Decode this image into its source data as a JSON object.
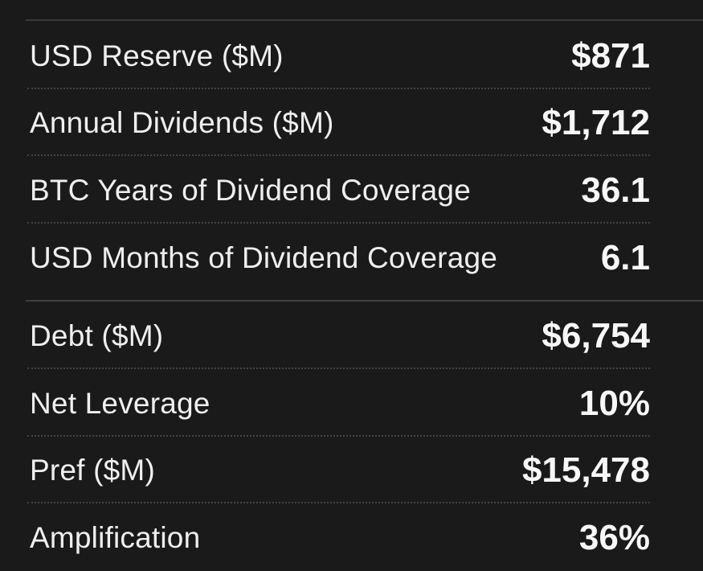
{
  "metrics": {
    "coverage": [
      {
        "label": "USD Reserve ($M)",
        "value": "$871"
      },
      {
        "label": "Annual Dividends ($M)",
        "value": "$1,712"
      },
      {
        "label": "BTC Years of Dividend Coverage",
        "value": "36.1"
      },
      {
        "label": "USD Months of Dividend Coverage",
        "value": "6.1"
      }
    ],
    "capital": [
      {
        "label": "Debt ($M)",
        "value": "$6,754"
      },
      {
        "label": "Net Leverage",
        "value": "10%"
      },
      {
        "label": "Pref ($M)",
        "value": "$15,478"
      },
      {
        "label": "Amplification",
        "value": "36%"
      }
    ]
  }
}
